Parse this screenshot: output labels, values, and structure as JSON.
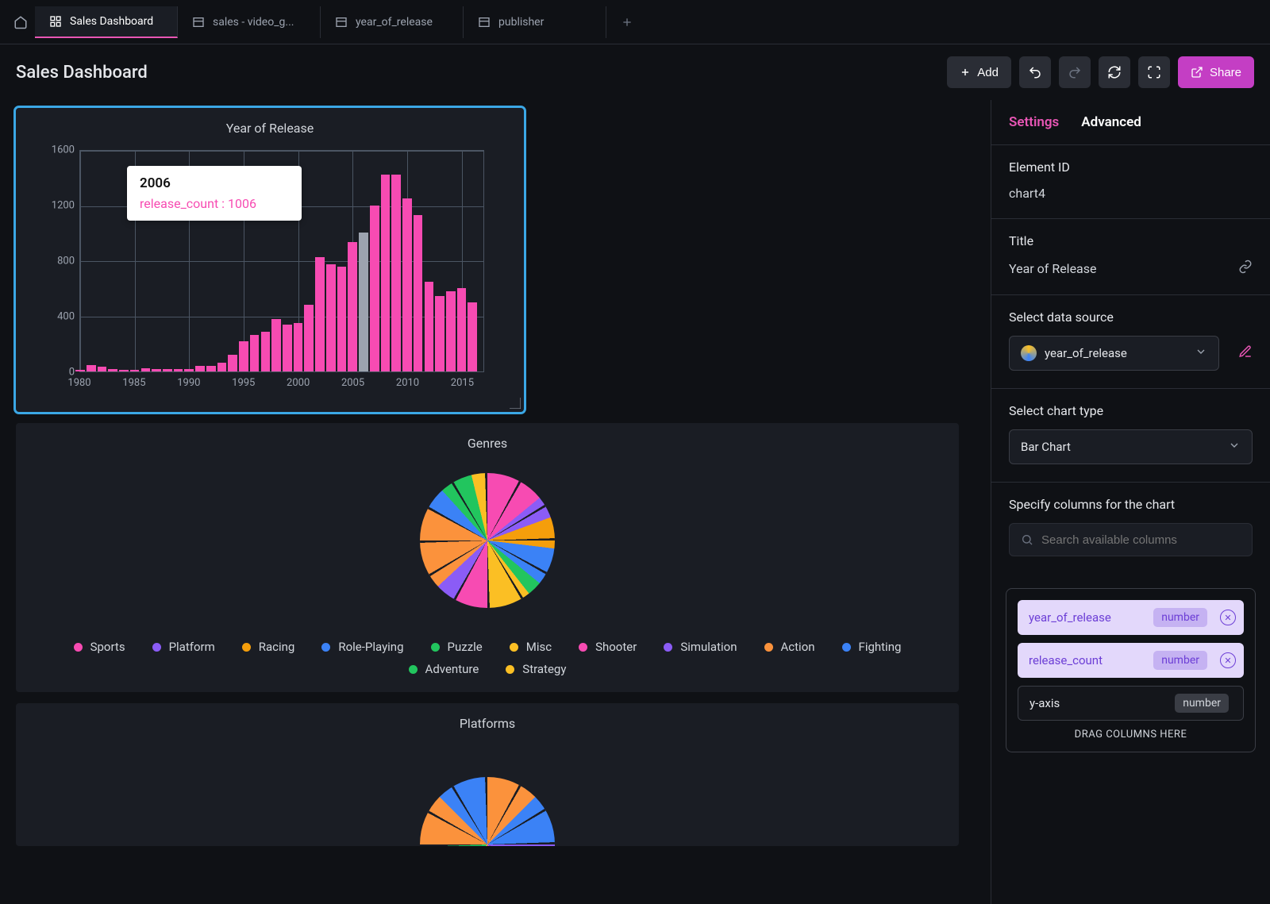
{
  "tabs": [
    {
      "label": "Sales Dashboard",
      "icon": "dashboard",
      "active": true
    },
    {
      "label": "sales - video_g...",
      "icon": "table",
      "active": false
    },
    {
      "label": "year_of_release",
      "icon": "table",
      "active": false
    },
    {
      "label": "publisher",
      "icon": "table",
      "active": false
    }
  ],
  "page_title": "Sales Dashboard",
  "header_buttons": {
    "add": "Add",
    "share": "Share"
  },
  "bar_chart": {
    "title": "Year of Release",
    "type": "bar",
    "selected": true,
    "ylim": [
      0,
      1600
    ],
    "ytick_step": 400,
    "yticks": [
      0,
      400,
      800,
      1200,
      1600
    ],
    "xlim": [
      1980,
      2017
    ],
    "xticks": [
      1980,
      1985,
      1990,
      1995,
      2000,
      2005,
      2010,
      2015
    ],
    "bar_color": "#f74bb2",
    "highlight_color": "#9ca3af",
    "grid_color": "#4b5563",
    "background_color": "#1a1d24",
    "years": [
      1980,
      1981,
      1982,
      1983,
      1984,
      1985,
      1986,
      1987,
      1988,
      1989,
      1990,
      1991,
      1992,
      1993,
      1994,
      1995,
      1996,
      1997,
      1998,
      1999,
      2000,
      2001,
      2002,
      2003,
      2004,
      2005,
      2006,
      2007,
      2008,
      2009,
      2010,
      2011,
      2012,
      2013,
      2014,
      2015,
      2016
    ],
    "values": [
      9,
      46,
      36,
      17,
      14,
      14,
      21,
      16,
      15,
      17,
      16,
      41,
      43,
      62,
      121,
      219,
      263,
      289,
      379,
      338,
      350,
      482,
      829,
      775,
      762,
      941,
      1006,
      1201,
      1427,
      1426,
      1255,
      1136,
      653,
      544,
      581,
      606,
      502
    ],
    "highlight_index": 26,
    "tooltip": {
      "title": "2006",
      "key": "release_count",
      "value": "1006",
      "color": "#f74bb2"
    }
  },
  "genres_chart": {
    "title": "Genres",
    "type": "pie",
    "slices": [
      {
        "label": "Sports",
        "color": "#f74bb2",
        "value": 14.1
      },
      {
        "label": "Platform",
        "color": "#8b5cf6",
        "value": 5.3
      },
      {
        "label": "Racing",
        "color": "#f59e0b",
        "value": 7.5
      },
      {
        "label": "Role-Playing",
        "color": "#3b82f6",
        "value": 9.0
      },
      {
        "label": "Puzzle",
        "color": "#22c55e",
        "value": 3.5
      },
      {
        "label": "Misc",
        "color": "#fbbf24",
        "value": 10.5
      },
      {
        "label": "Shooter",
        "color": "#f74bb2",
        "value": 7.9
      },
      {
        "label": "Simulation",
        "color": "#8b5cf6",
        "value": 5.3
      },
      {
        "label": "Action",
        "color": "#fb923c",
        "value": 20.1
      },
      {
        "label": "Fighting",
        "color": "#3b82f6",
        "value": 5.1
      },
      {
        "label": "Adventure",
        "color": "#22c55e",
        "value": 7.9
      },
      {
        "label": "Strategy",
        "color": "#fbbf24",
        "value": 4.1
      }
    ]
  },
  "platforms_chart": {
    "title": "Platforms",
    "colors": [
      "#fb923c",
      "#3b82f6",
      "#8b5cf6",
      "#f74bb2",
      "#fbbf24",
      "#22c55e",
      "#fb923c",
      "#3b82f6"
    ]
  },
  "sidepanel": {
    "tabs": {
      "settings": "Settings",
      "advanced": "Advanced"
    },
    "element_id_label": "Element ID",
    "element_id_value": "chart4",
    "title_label": "Title",
    "title_value": "Year of Release",
    "data_source_label": "Select data source",
    "data_source_value": "year_of_release",
    "chart_type_label": "Select chart type",
    "chart_type_value": "Bar Chart",
    "columns_label": "Specify columns for the chart",
    "search_placeholder": "Search available columns",
    "pills": [
      {
        "name": "year_of_release",
        "type": "number",
        "filled": true
      },
      {
        "name": "release_count",
        "type": "number",
        "filled": true
      },
      {
        "name": "y-axis",
        "type": "number",
        "filled": false
      }
    ],
    "drag_hint": "DRAG COLUMNS HERE"
  }
}
